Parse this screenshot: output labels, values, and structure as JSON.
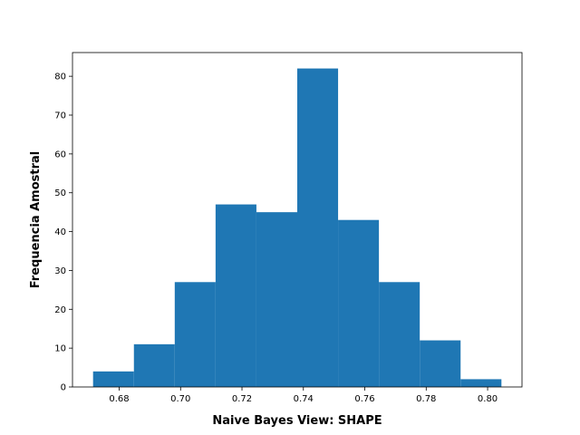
{
  "chart_data": {
    "type": "bar",
    "subtype": "histogram",
    "xlabel": "Naive Bayes View: SHAPE",
    "ylabel": "Frequencia Amostral",
    "bin_edges": [
      0.6715,
      0.6848,
      0.6981,
      0.7114,
      0.7247,
      0.738,
      0.7513,
      0.7646,
      0.7779,
      0.7912,
      0.8045
    ],
    "values": [
      4,
      11,
      27,
      47,
      45,
      82,
      43,
      27,
      12,
      2
    ],
    "xlim": [
      0.6648,
      0.8112
    ],
    "ylim": [
      0,
      86.1
    ],
    "xticks": [
      0.68,
      0.7,
      0.72,
      0.74,
      0.76,
      0.78,
      0.8
    ],
    "xtick_labels": [
      "0.68",
      "0.70",
      "0.72",
      "0.74",
      "0.76",
      "0.78",
      "0.80"
    ],
    "yticks": [
      0,
      10,
      20,
      30,
      40,
      50,
      60,
      70,
      80
    ],
    "ytick_labels": [
      "0",
      "10",
      "20",
      "30",
      "40",
      "50",
      "60",
      "70",
      "80"
    ],
    "bar_color": "#1f77b4",
    "grid": false
  }
}
